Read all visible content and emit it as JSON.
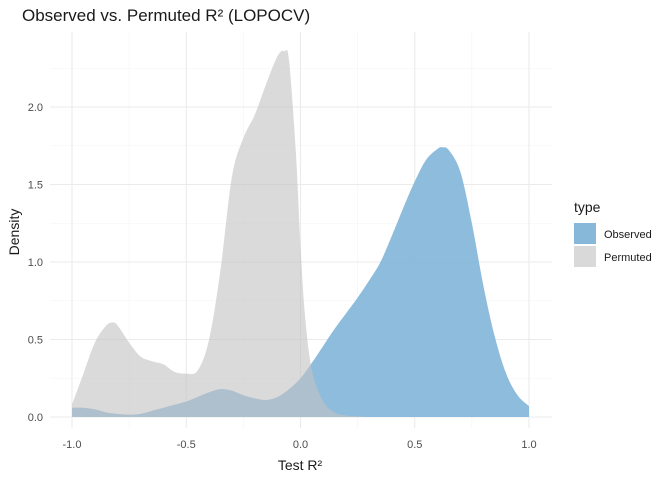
{
  "chart_data": {
    "type": "area",
    "title": "Observed vs. Permuted R² (LOPOCV)",
    "xlabel": "Test R²",
    "ylabel": "Density",
    "xlim": [
      -1.0,
      1.0
    ],
    "ylim": [
      0,
      2.5
    ],
    "x_ticks": [
      -1.0,
      -0.5,
      0.0,
      0.5,
      1.0
    ],
    "x_tick_labels": [
      "-1.0",
      "-0.5",
      "0.0",
      "0.5",
      "1.0"
    ],
    "y_ticks": [
      0.0,
      0.5,
      1.0,
      1.5,
      2.0
    ],
    "y_tick_labels": [
      "0.0",
      "0.5",
      "1.0",
      "1.5",
      "2.0"
    ],
    "grid": true,
    "legend": {
      "title": "type",
      "position": "right"
    },
    "series": [
      {
        "name": "Permuted",
        "color": "#d9d9d9",
        "x": [
          -1.0,
          -0.95,
          -0.9,
          -0.85,
          -0.82,
          -0.8,
          -0.75,
          -0.7,
          -0.65,
          -0.6,
          -0.55,
          -0.5,
          -0.45,
          -0.4,
          -0.35,
          -0.3,
          -0.25,
          -0.2,
          -0.15,
          -0.1,
          -0.07,
          -0.05,
          -0.02,
          0.0,
          0.02,
          0.05,
          0.1,
          0.15,
          0.2,
          0.25,
          0.3
        ],
        "y": [
          0.08,
          0.28,
          0.48,
          0.59,
          0.61,
          0.59,
          0.48,
          0.39,
          0.36,
          0.34,
          0.29,
          0.28,
          0.3,
          0.5,
          0.95,
          1.55,
          1.8,
          1.95,
          2.15,
          2.33,
          2.36,
          2.3,
          1.7,
          1.1,
          0.65,
          0.3,
          0.1,
          0.03,
          0.01,
          0.005,
          0.0
        ]
      },
      {
        "name": "Observed",
        "color": "#87b8da",
        "x": [
          -1.0,
          -0.95,
          -0.9,
          -0.85,
          -0.8,
          -0.75,
          -0.7,
          -0.65,
          -0.6,
          -0.55,
          -0.5,
          -0.45,
          -0.4,
          -0.35,
          -0.3,
          -0.25,
          -0.2,
          -0.15,
          -0.1,
          -0.05,
          0.0,
          0.05,
          0.1,
          0.15,
          0.2,
          0.25,
          0.3,
          0.35,
          0.4,
          0.45,
          0.5,
          0.55,
          0.6,
          0.62,
          0.65,
          0.7,
          0.75,
          0.8,
          0.85,
          0.9,
          0.95,
          1.0
        ],
        "y": [
          0.06,
          0.06,
          0.05,
          0.03,
          0.02,
          0.015,
          0.02,
          0.04,
          0.06,
          0.08,
          0.1,
          0.13,
          0.16,
          0.18,
          0.17,
          0.14,
          0.12,
          0.11,
          0.13,
          0.18,
          0.25,
          0.35,
          0.46,
          0.57,
          0.67,
          0.77,
          0.88,
          1.0,
          1.17,
          1.35,
          1.52,
          1.66,
          1.73,
          1.74,
          1.72,
          1.58,
          1.25,
          0.85,
          0.52,
          0.28,
          0.14,
          0.07
        ]
      }
    ]
  }
}
